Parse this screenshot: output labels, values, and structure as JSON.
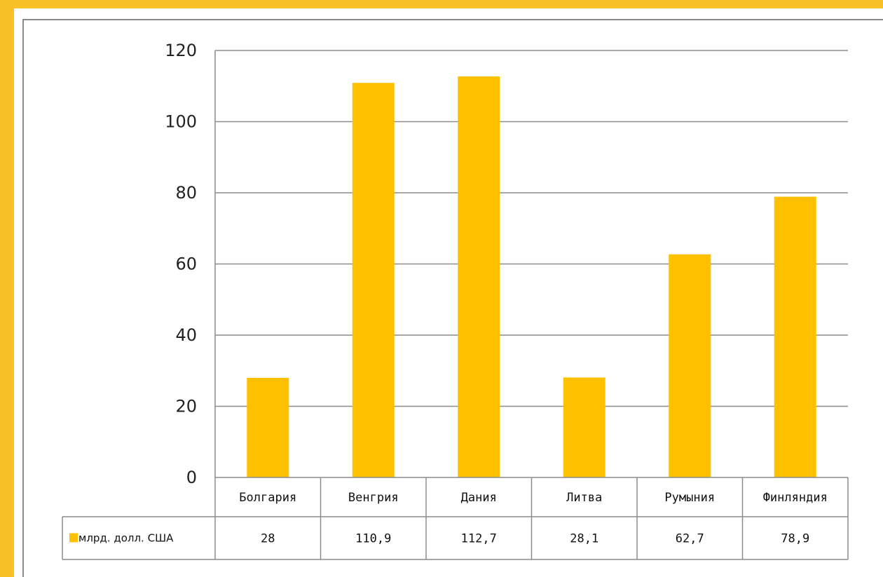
{
  "chart_data": {
    "type": "bar",
    "categories": [
      "Болгария",
      "Венгрия",
      "Дания",
      "Литва",
      "Румыния",
      "Финляндия"
    ],
    "series": [
      {
        "name": "млрд. долл. США",
        "values": [
          28,
          110.9,
          112.7,
          28.1,
          62.7,
          78.9
        ],
        "value_labels": [
          "28",
          "110,9",
          "112,7",
          "28,1",
          "62,7",
          "78,9"
        ],
        "color": "#ffc000"
      }
    ],
    "y_ticks": [
      "0",
      "20",
      "40",
      "60",
      "80",
      "100",
      "120"
    ],
    "ylim": [
      0,
      120
    ],
    "grid": true,
    "legend": "data-table",
    "data_table": true
  },
  "colors": {
    "frame": "#f9c127",
    "bar": "#ffc000",
    "grid": "#8c8c8c"
  }
}
